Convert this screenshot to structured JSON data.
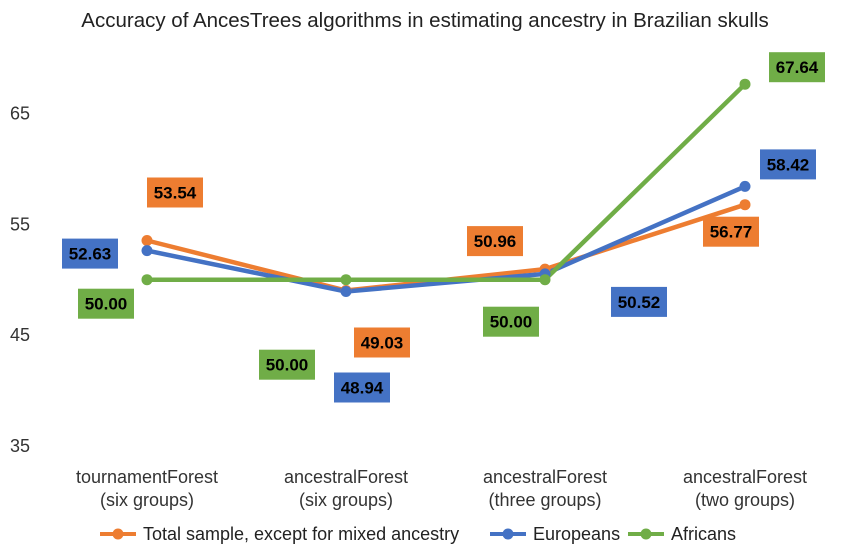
{
  "chart_data": {
    "type": "line",
    "title": "Accuracy of AncesTrees algorithms in estimating ancestry in Brazilian skulls",
    "xlabel": "",
    "ylabel": "",
    "ylim": [
      35,
      70
    ],
    "yticks": [
      35,
      45,
      55,
      65
    ],
    "grid": false,
    "legend": "bottom",
    "categories": [
      [
        "tournamentForest",
        "(six groups)"
      ],
      [
        "ancestralForest",
        "(six groups)"
      ],
      [
        "ancestralForest",
        "(three groups)"
      ],
      [
        "ancestralForest",
        "(two groups)"
      ]
    ],
    "series": [
      {
        "name": "Total sample, except for mixed ancestry",
        "color": "#ED7D31",
        "values": [
          53.54,
          49.03,
          50.96,
          56.77
        ],
        "labels": [
          "53.54",
          "49.03",
          "50.96",
          "56.77"
        ]
      },
      {
        "name": "Europeans",
        "color": "#4472C4",
        "values": [
          52.63,
          48.94,
          50.52,
          58.42
        ],
        "labels": [
          "52.63",
          "48.94",
          "50.52",
          "58.42"
        ]
      },
      {
        "name": "Africans",
        "color": "#70AD47",
        "values": [
          50.0,
          50.0,
          50.0,
          67.64
        ],
        "labels": [
          "50.00",
          "50.00",
          "50.00",
          "67.64"
        ]
      }
    ]
  }
}
